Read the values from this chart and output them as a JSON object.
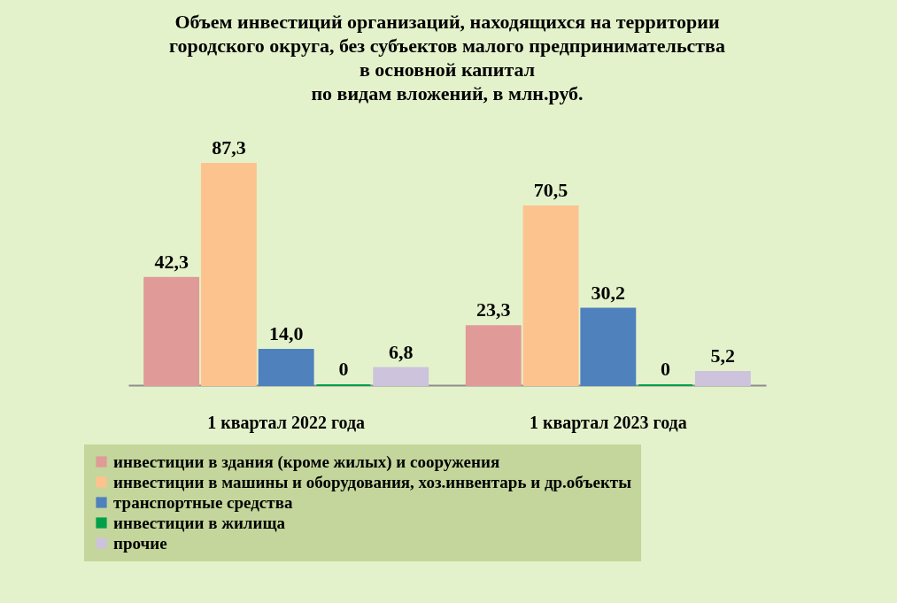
{
  "chart_data": {
    "type": "bar",
    "title": "Объем инвестиций организаций, находящихся на территории\nгородского округа, без субъектов малого предпринимательства\nв основной капитал\nпо видам вложений, в млн.руб.",
    "categories": [
      "1 квартал 2022 года",
      "1 квартал 2023 года"
    ],
    "series": [
      {
        "name": "инвестиции в здания (кроме жилых) и сооружения",
        "color": "#e09a98",
        "values": [
          42.3,
          23.3
        ],
        "value_labels": [
          "42,3",
          "23,3"
        ]
      },
      {
        "name": "инвестиции в машины и оборудования, хоз.инвентарь и др.объекты",
        "color": "#fcc38f",
        "values": [
          87.3,
          70.5
        ],
        "value_labels": [
          "87,3",
          "70,5"
        ]
      },
      {
        "name": "транспортные средства",
        "color": "#4f81bd",
        "values": [
          14.0,
          30.2
        ],
        "value_labels": [
          "14,0",
          "30,2"
        ]
      },
      {
        "name": "инвестиции в жилища",
        "color": "#00a04a",
        "values": [
          0,
          0
        ],
        "value_labels": [
          "0",
          "0"
        ]
      },
      {
        "name": "прочие",
        "color": "#cdc3dc",
        "values": [
          6.8,
          5.2
        ],
        "value_labels": [
          "6,8",
          "5,2"
        ]
      }
    ],
    "legend": "bottom",
    "grid": false
  }
}
